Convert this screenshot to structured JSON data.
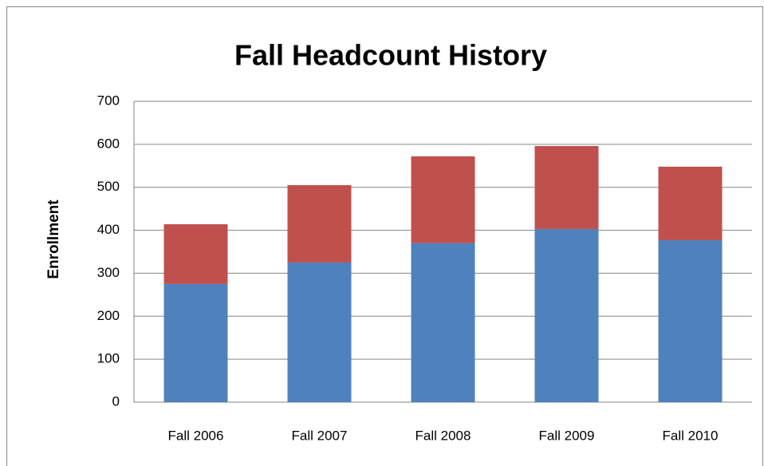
{
  "chart_data": {
    "type": "stacked_bar",
    "title": "Fall Headcount History",
    "y_label": "Enrollment",
    "categories": [
      "Fall 2006",
      "Fall 2007",
      "Fall 2008",
      "Fall 2009",
      "Fall 2010"
    ],
    "series": [
      {
        "color": "#4f81bd",
        "values": [
          275,
          325,
          370,
          403,
          377
        ]
      },
      {
        "color": "#c0504d",
        "values": [
          139,
          180,
          202,
          193,
          171
        ]
      }
    ],
    "ylim": [
      0,
      700
    ],
    "yticks": [
      0,
      100,
      200,
      300,
      400,
      500,
      600,
      700
    ],
    "grid": true
  }
}
